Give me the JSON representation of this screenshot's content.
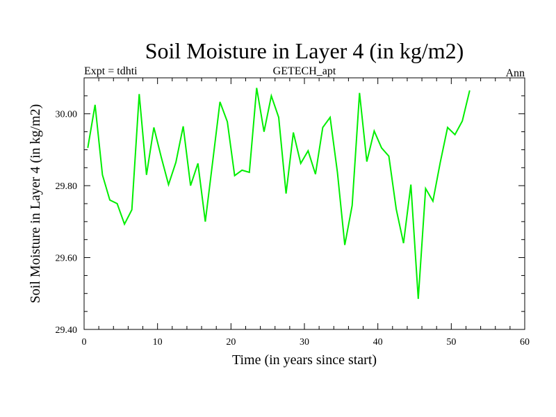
{
  "chart_data": {
    "type": "line",
    "title": "Soil Moisture in Layer 4 (in kg/m2)",
    "left_label": "Expt = tdhti",
    "center_label": "GETECH_apt",
    "right_label": "Ann",
    "xlabel": "Time (in years since start)",
    "ylabel": "Soil Moisture in Layer 4 (in kg/m2)",
    "xlim": [
      0,
      60
    ],
    "ylim": [
      29.4,
      30.1
    ],
    "xticks": [
      0,
      10,
      20,
      30,
      40,
      50,
      60
    ],
    "xtick_labels": [
      "0",
      "10",
      "20",
      "30",
      "40",
      "50",
      "60"
    ],
    "yticks": [
      29.4,
      29.6,
      29.8,
      30.0
    ],
    "ytick_labels": [
      "29.40",
      "29.60",
      "29.80",
      "30.00"
    ],
    "line_color": "#00ee00",
    "series": [
      {
        "name": "Soil Moisture",
        "x": [
          0.5,
          1.5,
          2.5,
          3.5,
          4.5,
          5.5,
          6.5,
          7.5,
          8.5,
          9.5,
          10.5,
          11.5,
          12.5,
          13.5,
          14.5,
          15.5,
          16.5,
          17.5,
          18.5,
          19.5,
          20.5,
          21.5,
          22.5,
          23.5,
          24.5,
          25.5,
          26.5,
          27.5,
          28.5,
          29.5,
          30.5,
          31.5,
          32.5,
          33.5,
          34.5,
          35.5,
          36.5,
          37.5,
          38.5,
          39.5,
          40.5,
          41.5,
          42.5,
          43.5,
          44.5,
          45.5,
          46.5,
          47.5,
          48.5,
          49.5,
          50.5,
          51.5,
          52.5
        ],
        "values": [
          29.905,
          30.025,
          29.83,
          29.76,
          29.75,
          29.693,
          29.733,
          30.055,
          29.83,
          29.962,
          29.88,
          29.803,
          29.865,
          29.965,
          29.8,
          29.862,
          29.7,
          29.865,
          30.033,
          29.978,
          29.828,
          29.843,
          29.837,
          30.072,
          29.95,
          30.05,
          29.99,
          29.778,
          29.948,
          29.862,
          29.897,
          29.832,
          29.962,
          29.99,
          29.837,
          29.635,
          29.745,
          30.058,
          29.867,
          29.952,
          29.905,
          29.882,
          29.735,
          29.64,
          29.803,
          29.485,
          29.792,
          29.757,
          29.865,
          29.962,
          29.942,
          29.98,
          30.065
        ]
      }
    ]
  }
}
